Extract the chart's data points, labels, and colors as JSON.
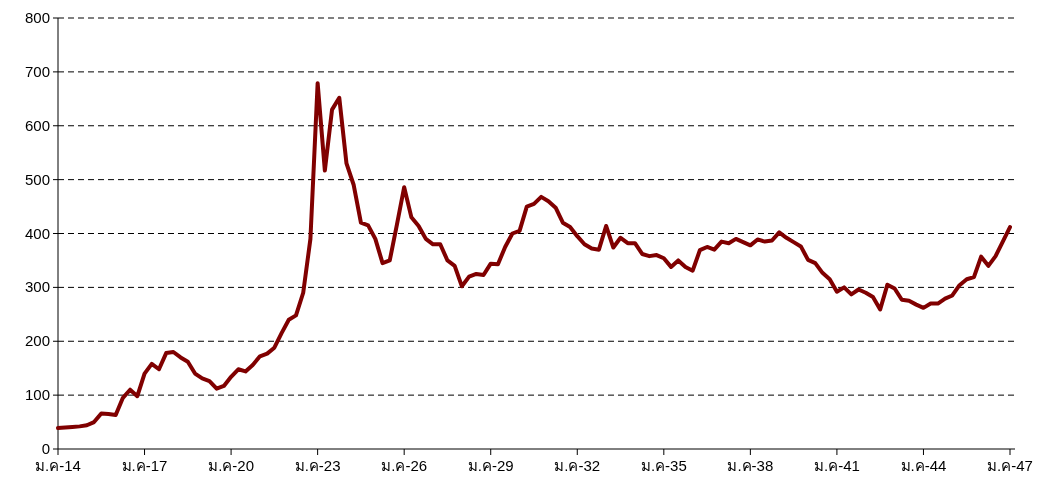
{
  "chart_data": {
    "type": "line",
    "grid": "y",
    "ylim": [
      0,
      800
    ],
    "yticks": [
      0,
      100,
      200,
      300,
      400,
      500,
      600,
      700,
      800
    ],
    "categories": [
      "ม.ค-14",
      null,
      null,
      null,
      null,
      null,
      null,
      null,
      null,
      null,
      null,
      null,
      "ม.ค-17",
      null,
      null,
      null,
      null,
      null,
      null,
      null,
      null,
      null,
      null,
      null,
      "ม.ค-20",
      null,
      null,
      null,
      null,
      null,
      null,
      null,
      null,
      null,
      null,
      null,
      "ม.ค-23",
      null,
      null,
      null,
      null,
      null,
      null,
      null,
      null,
      null,
      null,
      null,
      "ม.ค-26",
      null,
      null,
      null,
      null,
      null,
      null,
      null,
      null,
      null,
      null,
      null,
      "ม.ค-29",
      null,
      null,
      null,
      null,
      null,
      null,
      null,
      null,
      null,
      null,
      null,
      "ม.ค-32",
      null,
      null,
      null,
      null,
      null,
      null,
      null,
      null,
      null,
      null,
      null,
      "ม.ค-35",
      null,
      null,
      null,
      null,
      null,
      null,
      null,
      null,
      null,
      null,
      null,
      "ม.ค-38",
      null,
      null,
      null,
      null,
      null,
      null,
      null,
      null,
      null,
      null,
      null,
      "ม.ค-41",
      null,
      null,
      null,
      null,
      null,
      null,
      null,
      null,
      null,
      null,
      null,
      "ม.ค-44",
      null,
      null,
      null,
      null,
      null,
      null,
      null,
      null,
      null,
      null,
      null,
      "ม.ค-47"
    ],
    "series": [
      {
        "color": "#800000",
        "values": [
          39,
          40,
          41,
          42,
          44,
          50,
          66,
          65,
          63,
          95,
          110,
          98,
          140,
          158,
          148,
          178,
          180,
          170,
          162,
          140,
          131,
          126,
          112,
          117,
          134,
          148,
          144,
          156,
          172,
          177,
          188,
          215,
          240,
          248,
          290,
          390,
          679,
          517,
          630,
          652,
          530,
          490,
          420,
          415,
          390,
          345,
          350,
          417,
          486,
          430,
          414,
          390,
          380,
          380,
          350,
          340,
          302,
          320,
          325,
          323,
          344,
          343,
          375,
          400,
          405,
          450,
          455,
          468,
          460,
          448,
          420,
          412,
          395,
          380,
          372,
          370,
          414,
          374,
          392,
          382,
          382,
          362,
          358,
          360,
          354,
          338,
          350,
          338,
          331,
          369,
          375,
          370,
          385,
          382,
          390,
          384,
          378,
          389,
          385,
          387,
          402,
          392,
          384,
          376,
          351,
          345,
          327,
          315,
          292,
          300,
          287,
          296,
          290,
          282,
          259,
          305,
          298,
          277,
          275,
          268,
          262,
          270,
          270,
          279,
          285,
          304,
          315,
          319,
          357,
          340,
          358,
          385,
          412
        ]
      }
    ]
  }
}
